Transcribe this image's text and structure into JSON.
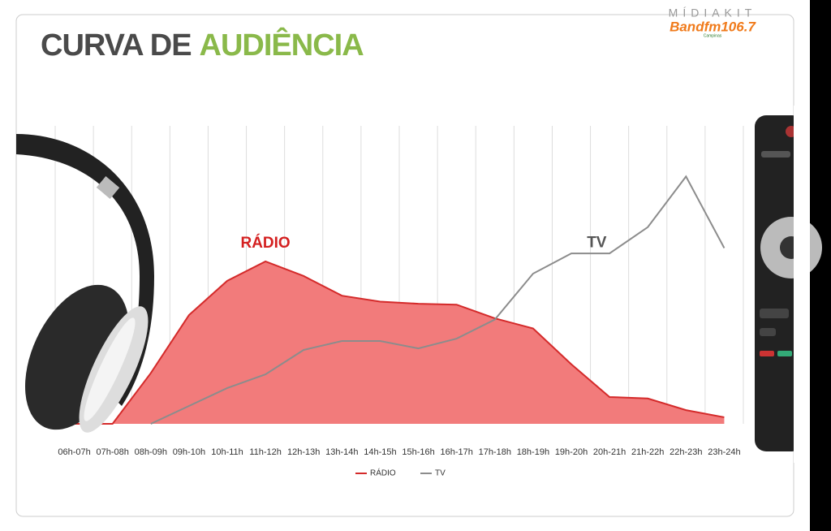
{
  "logo": {
    "kit": "MÍDIAKIT",
    "brand": "Bandfm106.7",
    "city": "Campinas"
  },
  "chart_data": {
    "type": "area_line",
    "title": {
      "part1": "CURVA DE",
      "part2": "AUDIÊNCIA"
    },
    "categories": [
      "06h-07h",
      "07h-08h",
      "08h-09h",
      "09h-10h",
      "10h-11h",
      "11h-12h",
      "12h-13h",
      "13h-14h",
      "14h-15h",
      "15h-16h",
      "16h-17h",
      "17h-18h",
      "18h-19h",
      "19h-20h",
      "20h-21h",
      "21h-22h",
      "22h-23h",
      "23h-24h"
    ],
    "ylim": [
      0,
      100
    ],
    "series": [
      {
        "name": "RÁDIO",
        "color": "#d42a2a",
        "fill": "#f27b7b",
        "style": "area",
        "label": "RÁDIO",
        "values": [
          0,
          0,
          17,
          36.5,
          48,
          54.5,
          49.6,
          43,
          41,
          40.3,
          40,
          35.4,
          32,
          20,
          9,
          8.5,
          4.6,
          2.2
        ]
      },
      {
        "name": "TV",
        "color": "#8c8c8c",
        "style": "line",
        "label": "TV",
        "values": [
          null,
          null,
          0,
          6,
          12,
          16.6,
          24.8,
          27.8,
          27.8,
          25.3,
          28.6,
          35,
          50.4,
          57.2,
          57.2,
          66,
          83,
          59
        ]
      }
    ],
    "grid": true,
    "legend": "bottom"
  }
}
